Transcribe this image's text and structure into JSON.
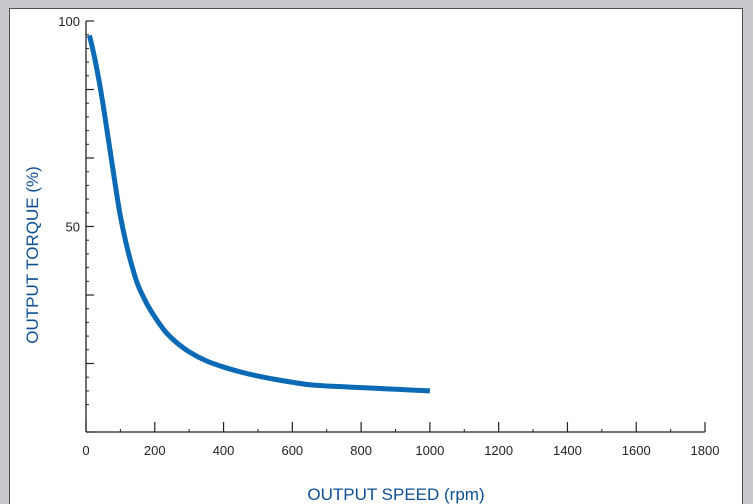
{
  "colors": {
    "background": "#c6c8cc",
    "panel": "#ffffff",
    "axis": "#222222",
    "curve": "#0a6ab5",
    "axis_title": "#0d4f94"
  },
  "chart_data": {
    "type": "line",
    "title": "",
    "xlabel": "OUTPUT SPEED (rpm)",
    "ylabel": "OUTPUT TORQUE (%)",
    "xlim": [
      0,
      1800
    ],
    "ylim": [
      0,
      100
    ],
    "x_ticks": [
      0,
      200,
      400,
      600,
      800,
      1000,
      1200,
      1400,
      1600,
      1800
    ],
    "x_tick_labels": [
      "0",
      "200",
      "400",
      "600",
      "800",
      "1000",
      "1200",
      "1400",
      "1600",
      "1800"
    ],
    "x_minor_ticks": [
      100,
      300,
      500,
      700,
      900,
      1100,
      1300,
      1500,
      1700
    ],
    "y_ticks": [
      0,
      16.67,
      33.33,
      50,
      66.67,
      83.33,
      100
    ],
    "y_tick_labels": [
      "50",
      "100"
    ],
    "y_labeled_ticks": [
      50,
      100
    ],
    "y_minor_ticks": [
      6.67,
      10,
      13.33,
      20,
      23.33,
      26.67,
      30,
      36.67,
      40,
      43.33,
      46.67,
      53.33,
      56.67,
      60,
      63.33,
      70,
      73.33,
      76.67,
      80,
      86.67,
      90,
      93.33,
      96.67
    ],
    "grid": false,
    "legend": "none",
    "series": [
      {
        "color": "#0a6ab5",
        "x": [
          10,
          20,
          30,
          40,
          50,
          60,
          70,
          80,
          90,
          100,
          115,
          130,
          150,
          175,
          200,
          230,
          260,
          300,
          350,
          400,
          450,
          500,
          550,
          600,
          650,
          700,
          750,
          800,
          850,
          900,
          950,
          1000
        ],
        "y": [
          96.5,
          93,
          89,
          84.5,
          79.5,
          74,
          68.5,
          63,
          57.5,
          52.5,
          46.5,
          41.5,
          36,
          31.5,
          28,
          24.5,
          22,
          19.5,
          17.3,
          15.8,
          14.6,
          13.6,
          12.8,
          12.1,
          11.5,
          11.2,
          11.0,
          10.8,
          10.6,
          10.4,
          10.2,
          10.0
        ]
      }
    ]
  }
}
